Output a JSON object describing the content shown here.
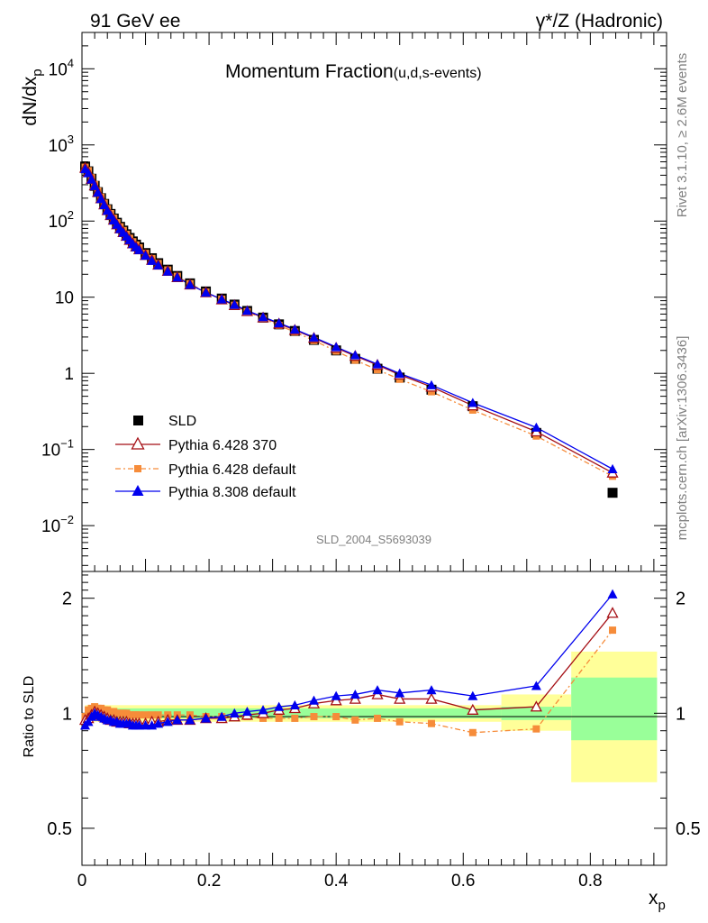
{
  "header": {
    "left": "91 GeV ee",
    "right": "γ*/Z (Hadronic)"
  },
  "side": {
    "rivet": "Rivet 3.1.10, ≥ 2.6M events",
    "mcplots": "mcplots.cern.ch [arXiv:1306.3436]"
  },
  "chart_data": {
    "type": "scatter",
    "title": "Momentum Fraction",
    "title_sub": "(u,d,s-events)",
    "ylabel": "dN/dx",
    "ylabel_sub": "p",
    "xlabel": "x",
    "xlabel_sub": "p",
    "ratio_ylabel": "Ratio to SLD",
    "watermark": "SLD_2004_S5693039",
    "yscale": "log",
    "ylim": [
      0.0025,
      30000
    ],
    "xlim": [
      0,
      0.92
    ],
    "ratio_ylim": [
      0.4,
      2.35
    ],
    "xticks": [
      "0",
      "0.2",
      "0.4",
      "0.6",
      "0.8"
    ],
    "main_ticks": [
      {
        "v": 0.01,
        "b": "10",
        "e": "−2"
      },
      {
        "v": 0.1,
        "b": "10",
        "e": "−1"
      },
      {
        "v": 1,
        "b": "1",
        "e": ""
      },
      {
        "v": 10,
        "b": "10",
        "e": ""
      },
      {
        "v": 100,
        "b": "10",
        "e": "2"
      },
      {
        "v": 1000,
        "b": "10",
        "e": "3"
      },
      {
        "v": 10000,
        "b": "10",
        "e": "4"
      }
    ],
    "ratio_ticks": [
      "0.5",
      "1",
      "2"
    ],
    "x": [
      0.005,
      0.01,
      0.015,
      0.02,
      0.025,
      0.03,
      0.035,
      0.04,
      0.045,
      0.05,
      0.055,
      0.06,
      0.065,
      0.07,
      0.075,
      0.08,
      0.085,
      0.09,
      0.1,
      0.11,
      0.12,
      0.135,
      0.15,
      0.17,
      0.195,
      0.22,
      0.24,
      0.26,
      0.285,
      0.31,
      0.335,
      0.365,
      0.4,
      0.43,
      0.465,
      0.5,
      0.55,
      0.615,
      0.715,
      0.835
    ],
    "sld_values": [
      520,
      450,
      360,
      290,
      240,
      200,
      168,
      143,
      124,
      108,
      95,
      84,
      75,
      67,
      60,
      54,
      49,
      45,
      38,
      32.5,
      28,
      23,
      19,
      15.2,
      11.9,
      9.6,
      8.0,
      6.6,
      5.4,
      4.4,
      3.6,
      2.75,
      2.0,
      1.55,
      1.15,
      0.88,
      0.61,
      0.37,
      0.165,
      0.027
    ],
    "series": [
      {
        "name": "SLD",
        "color": "#000000",
        "marker": "square"
      },
      {
        "name": "Pythia 6.428 370",
        "color": "#a50f15",
        "marker": "open-triangle",
        "ratio": [
          0.96,
          0.97,
          0.99,
          1.01,
          1.0,
          0.99,
          0.98,
          0.97,
          0.96,
          0.96,
          0.95,
          0.95,
          0.95,
          0.95,
          0.94,
          0.94,
          0.94,
          0.94,
          0.94,
          0.95,
          0.95,
          0.96,
          0.96,
          0.96,
          0.97,
          0.97,
          0.98,
          0.99,
          1.0,
          1.02,
          1.03,
          1.06,
          1.08,
          1.09,
          1.12,
          1.09,
          1.09,
          1.02,
          1.04,
          1.83
        ]
      },
      {
        "name": "Pythia 6.428 default",
        "color": "#f68c3a",
        "marker": "square",
        "dash": true,
        "ratio": [
          0.98,
          1.02,
          1.03,
          1.04,
          1.03,
          1.03,
          1.02,
          1.02,
          1.01,
          1.01,
          1.0,
          1.0,
          1.0,
          1.0,
          0.99,
          0.99,
          0.99,
          0.99,
          0.99,
          0.99,
          0.99,
          0.99,
          0.99,
          0.99,
          0.98,
          0.98,
          0.98,
          0.98,
          0.97,
          0.97,
          0.97,
          0.98,
          0.98,
          0.96,
          0.97,
          0.95,
          0.94,
          0.89,
          0.91,
          1.65
        ]
      },
      {
        "name": "Pythia 8.308 default",
        "color": "#0000ee",
        "marker": "triangle",
        "ratio": [
          0.93,
          0.95,
          0.98,
          1.0,
          0.99,
          0.98,
          0.97,
          0.96,
          0.96,
          0.95,
          0.95,
          0.94,
          0.94,
          0.94,
          0.94,
          0.93,
          0.93,
          0.93,
          0.93,
          0.93,
          0.94,
          0.95,
          0.96,
          0.96,
          0.97,
          0.98,
          1.0,
          1.01,
          1.02,
          1.04,
          1.05,
          1.08,
          1.11,
          1.12,
          1.15,
          1.13,
          1.15,
          1.11,
          1.18,
          2.05
        ]
      }
    ],
    "bands": [
      {
        "x0": 0.005,
        "x1": 0.66,
        "s0": 0.97,
        "s1": 1.03,
        "t0": 0.95,
        "t1": 1.05
      },
      {
        "x0": 0.66,
        "x1": 0.77,
        "s0": 0.96,
        "s1": 1.04,
        "t0": 0.9,
        "t1": 1.12
      },
      {
        "x0": 0.77,
        "x1": 0.905,
        "s0": 0.85,
        "s1": 1.24,
        "t0": 0.66,
        "t1": 1.45
      }
    ],
    "legend_placement": "bottom-left"
  }
}
